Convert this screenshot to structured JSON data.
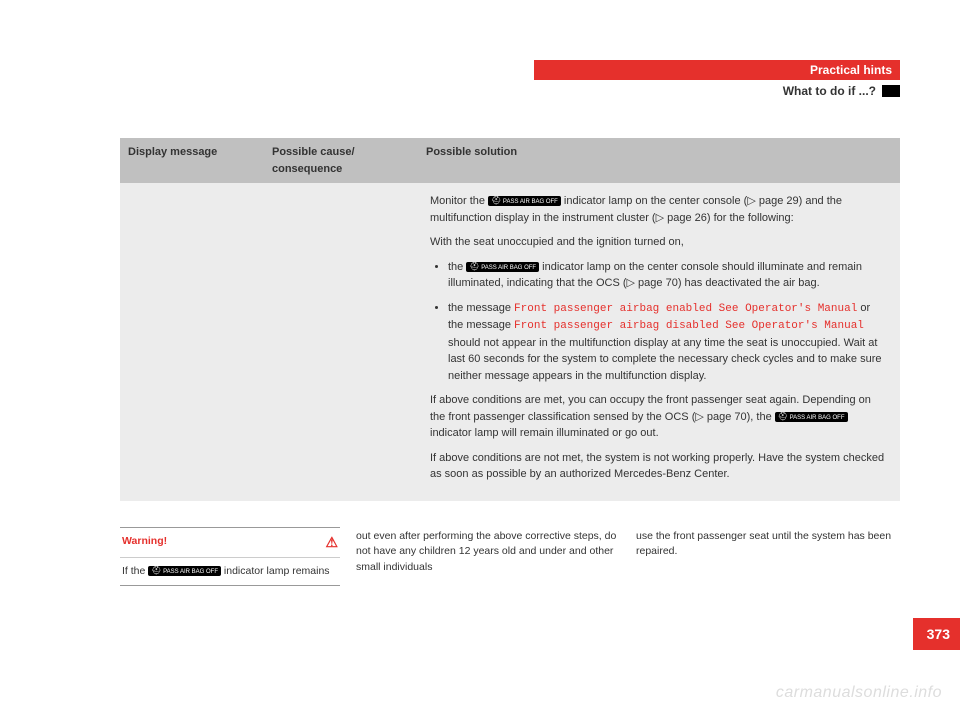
{
  "header": {
    "section": "Practical hints",
    "subsection": "What to do if ...?"
  },
  "table": {
    "headers": {
      "col1": "Display message",
      "col2": "Possible cause/\nconsequence",
      "col3": "Possible solution"
    },
    "solution": {
      "p1_a": "Monitor the ",
      "p1_b": " indicator lamp on the center console (▷ page 29) and the multifunction display in the instrument cluster (▷ page 26) for the following:",
      "p2": "With the seat unoccupied and the ignition turned on,",
      "b1_a": "the ",
      "b1_b": " indicator lamp on the center console should illuminate and remain illuminated, indicating that the OCS (▷ page 70) has deactivated the air bag.",
      "b2_a": "the message ",
      "b2_msg1": "Front passenger airbag enabled See Operator's Manual",
      "b2_b": " or the message ",
      "b2_msg2": "Front passenger airbag disabled See Operator's Manual",
      "b2_c": " should not appear in the multifunction display at any time the seat is unoccupied. Wait at last 60 seconds for the system to complete the necessary check cycles and to make sure neither message appears in the multifunction display.",
      "p3_a": "If above conditions are met, you can occupy the front passenger seat again. Depending on the front passenger classification sensed by the OCS (▷ page 70), the ",
      "p3_b": " indicator lamp will remain illuminated or go out.",
      "p4": "If above conditions are not met, the system is not working properly. Have the system checked as soon as possible by an authorized Mercedes-Benz Center."
    }
  },
  "warning": {
    "title": "Warning!",
    "body_a": "If the ",
    "body_b": " indicator lamp remains"
  },
  "footer": {
    "col1": "out even after performing the above corrective steps, do not have any children 12 years old and under and other small individuals",
    "col2": "use the front passenger seat until the system has been repaired."
  },
  "page_number": "373",
  "watermark": "carmanualsonline.info",
  "lamp_label": "PASS AIR BAG OFF",
  "colors": {
    "accent": "#e5302c",
    "th_bg": "#c0c0c0",
    "td_bg": "#ececec"
  }
}
